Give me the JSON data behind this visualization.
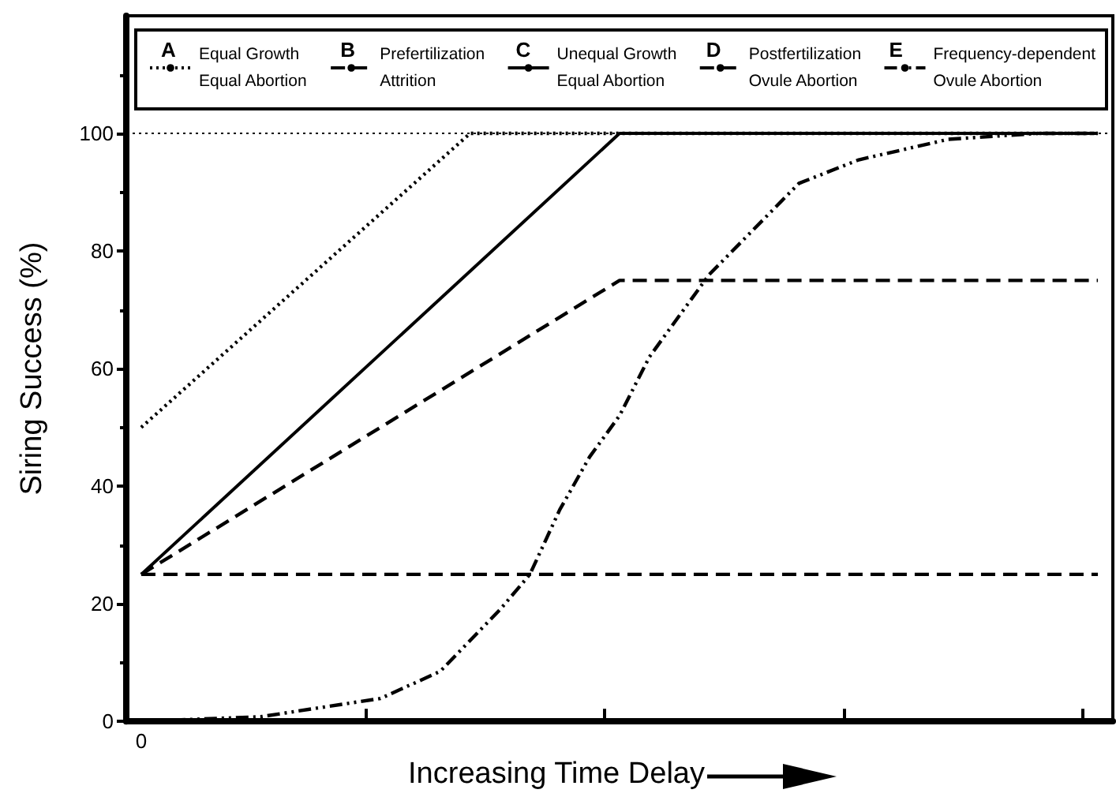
{
  "chart_data": {
    "type": "line",
    "xlabel": "Increasing Time Delay",
    "ylabel": "Siring Success (%)",
    "categories": [
      "0",
      null,
      null,
      null,
      null,
      null,
      null,
      null,
      null,
      null,
      null,
      null,
      null,
      null,
      null,
      null,
      null,
      null,
      null,
      null,
      null,
      null,
      null,
      null,
      null,
      null,
      null,
      null,
      null,
      null,
      null,
      null,
      null
    ],
    "ylim": [
      0,
      120
    ],
    "yticks": [
      0,
      20,
      40,
      60,
      80,
      100
    ],
    "grid": false,
    "legend": "top",
    "marker": "none",
    "annotations": [
      "A",
      "B",
      "C",
      "D",
      "E"
    ],
    "ref_lines": [
      {
        "axis": "y",
        "value": 100,
        "line_style": "dotted"
      }
    ],
    "series": [
      {
        "name": "Equal Growth\nEqual Abortion",
        "color": "#000000",
        "line_style": "dotted",
        "values": [
          50,
          null,
          null,
          null,
          null,
          null,
          null,
          null,
          null,
          null,
          null,
          100,
          null,
          null,
          null,
          null,
          null,
          null,
          null,
          null,
          null,
          null,
          null,
          null,
          null,
          null,
          null,
          null,
          null,
          null,
          null,
          null,
          100
        ]
      },
      {
        "name": "Prefertilization\nAttrition",
        "color": "#000000",
        "line_style": "dashed",
        "values": [
          25,
          null,
          null,
          null,
          null,
          null,
          null,
          null,
          null,
          null,
          null,
          null,
          null,
          null,
          null,
          null,
          null,
          null,
          null,
          null,
          null,
          null,
          null,
          null,
          null,
          null,
          null,
          null,
          null,
          null,
          null,
          null,
          25
        ]
      },
      {
        "name": "Unequal Growth\nEqual Abortion",
        "color": "#000000",
        "line_style": "solid",
        "values": [
          25,
          null,
          null,
          null,
          null,
          null,
          null,
          null,
          null,
          null,
          null,
          null,
          null,
          null,
          null,
          null,
          100,
          null,
          null,
          null,
          null,
          null,
          null,
          null,
          null,
          null,
          null,
          null,
          null,
          null,
          null,
          null,
          100
        ]
      },
      {
        "name": "Postfertilization\nOvule Abortion",
        "color": "#000000",
        "line_style": "dashed",
        "values": [
          25,
          null,
          null,
          null,
          null,
          null,
          null,
          null,
          null,
          null,
          null,
          null,
          null,
          null,
          null,
          null,
          75,
          null,
          null,
          null,
          null,
          null,
          null,
          null,
          null,
          null,
          null,
          null,
          null,
          null,
          null,
          null,
          75
        ]
      },
      {
        "name": "Frequency-dependent\nOvule Abortion",
        "color": "#000000",
        "line_style": "dashdot",
        "values": [
          0,
          null,
          null,
          null,
          0.8,
          null,
          null,
          null,
          3.9,
          null,
          8.5,
          null,
          19,
          25,
          36,
          45,
          52,
          62,
          null,
          76,
          null,
          null,
          91.5,
          null,
          95.5,
          null,
          null,
          99,
          null,
          null,
          100,
          null,
          100
        ]
      }
    ]
  }
}
